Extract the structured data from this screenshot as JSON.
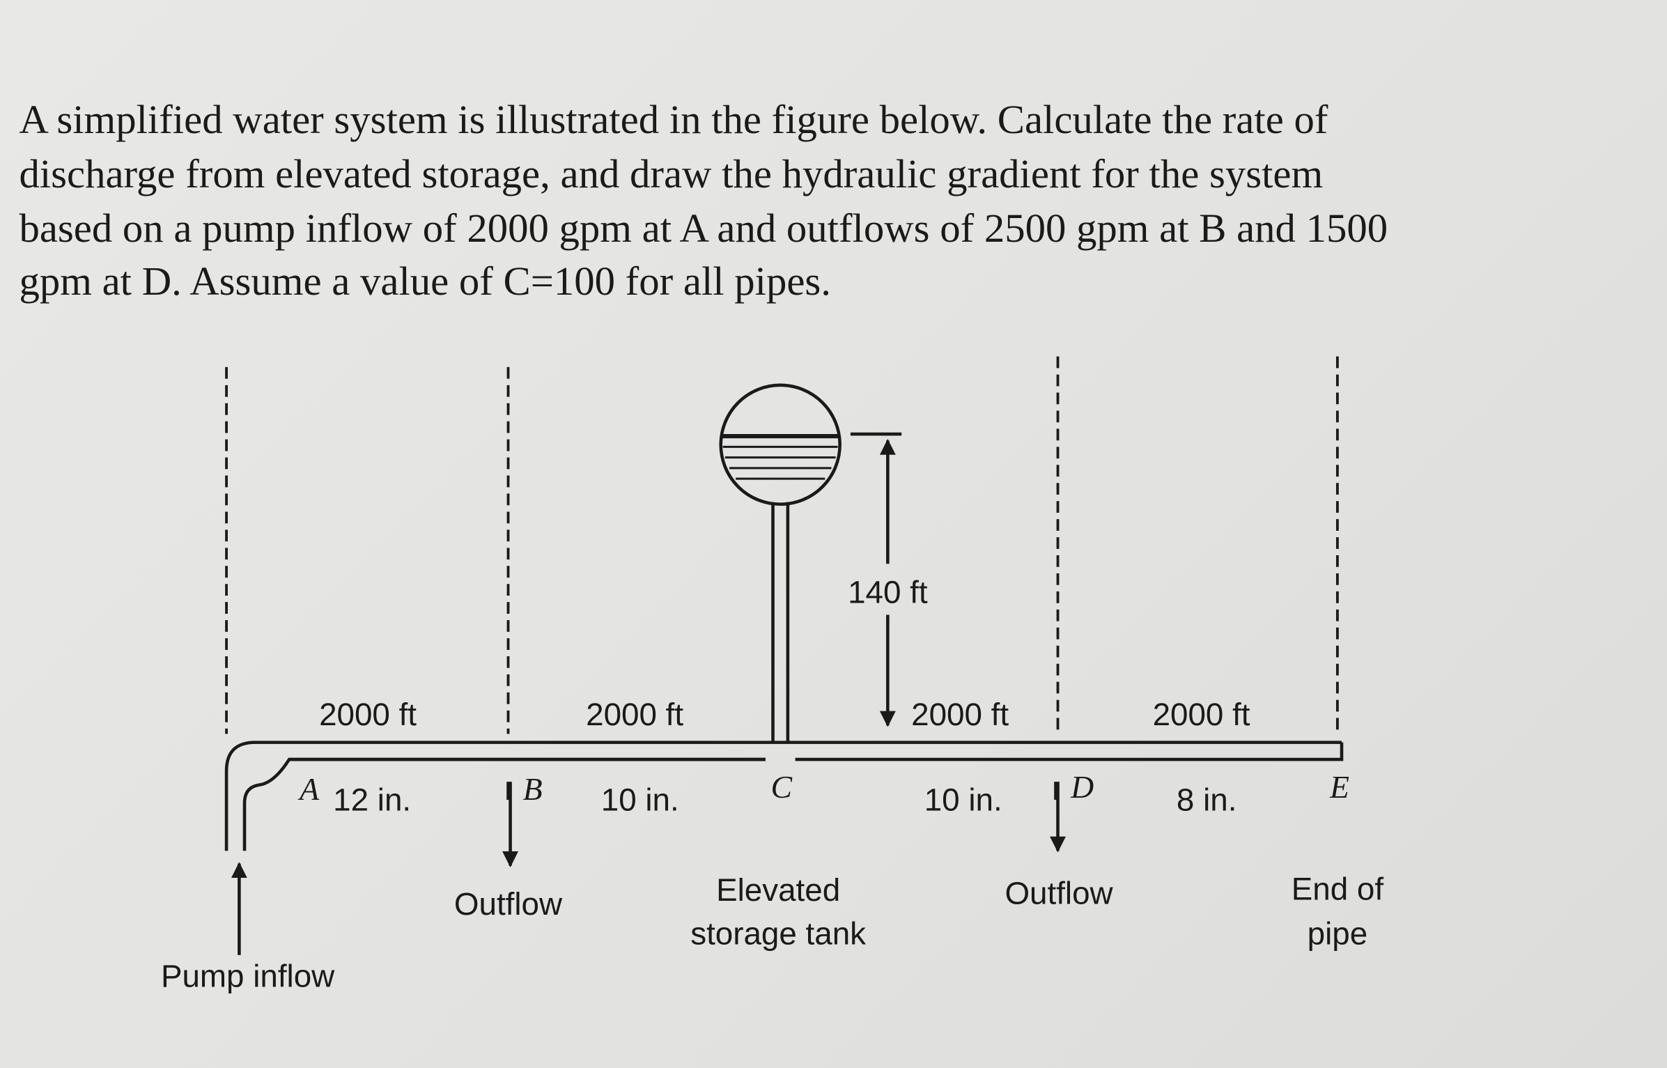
{
  "question": {
    "lines": [
      "A simplified water system is illustrated in the figure below. Calculate the rate of",
      "discharge from elevated storage, and draw the hydraulic gradient for the system",
      "based on a pump inflow of 2000 gpm at A and outflows of 2500 gpm at B and 1500",
      "gpm at D. Assume a value of C=100 for all pipes."
    ]
  },
  "diagram": {
    "pipes": [
      {
        "length": "2000 ft",
        "diameter": "12 in."
      },
      {
        "length": "2000 ft",
        "diameter": "10 in."
      },
      {
        "length": "2000 ft",
        "diameter": "10 in."
      },
      {
        "length": "2000 ft",
        "diameter": "8 in."
      }
    ],
    "nodes": [
      "A",
      "B",
      "C",
      "D",
      "E"
    ],
    "tank_height": "140 ft",
    "labels": {
      "pump": [
        "Pump inflow"
      ],
      "outflow_b": [
        "Outflow"
      ],
      "tank": [
        "Elevated",
        "storage tank"
      ],
      "outflow_d": [
        "Outflow"
      ],
      "end": [
        "End of",
        "pipe"
      ]
    }
  }
}
